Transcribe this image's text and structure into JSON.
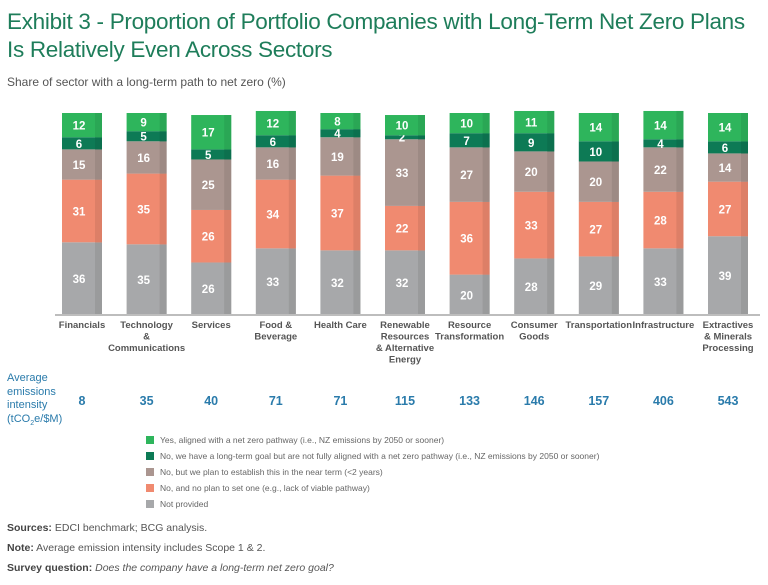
{
  "header": {
    "title": "Exhibit 3 - Proportion of Portfolio Companies with Long-Term Net Zero Plans Is Relatively Even Across Sectors",
    "subtitle": "Share of sector with a long-term path to net zero (%)"
  },
  "chart_data": {
    "type": "bar",
    "stacked": true,
    "title": "Share of sector with a long-term path to net zero (%)",
    "xlabel": "",
    "ylabel": "",
    "ylim": [
      0,
      100
    ],
    "grid": false,
    "legend_position": "bottom",
    "categories": [
      [
        "Financials"
      ],
      [
        "Technology",
        "&",
        "Communications"
      ],
      [
        "Services"
      ],
      [
        "Food &",
        "Beverage"
      ],
      [
        "Health Care"
      ],
      [
        "Renewable",
        "Resources",
        "& Alternative",
        "Energy"
      ],
      [
        "Resource",
        "Transformation"
      ],
      [
        "Consumer",
        "Goods"
      ],
      [
        "Transportation"
      ],
      [
        "Infrastructure"
      ],
      [
        "Extractives",
        "& Minerals",
        "Processing"
      ]
    ],
    "series": [
      {
        "name": "Not provided",
        "color": "#a7a8aa",
        "values": [
          36,
          35,
          26,
          33,
          32,
          32,
          20,
          28,
          29,
          33,
          39
        ]
      },
      {
        "name": "No, and no plan to set one (e.g., lack of viable pathway)",
        "color": "#f08a70",
        "values": [
          31,
          35,
          26,
          34,
          37,
          22,
          36,
          33,
          27,
          28,
          27
        ]
      },
      {
        "name": "No, but we plan to establish this in the near term (<2 years)",
        "color": "#ab9690",
        "values": [
          15,
          16,
          25,
          16,
          19,
          33,
          27,
          20,
          20,
          22,
          14
        ]
      },
      {
        "name": "No, we have a long-term goal but are not fully aligned with a net zero pathway (i.e., NZ emissions by 2050 or sooner)",
        "color": "#0d7a55",
        "values": [
          6,
          5,
          5,
          6,
          4,
          2,
          7,
          9,
          10,
          4,
          6
        ]
      },
      {
        "name": "Yes, aligned with a net zero pathway (i.e., NZ emissions by 2050 or sooner)",
        "color": "#2eb55c",
        "values": [
          12,
          9,
          17,
          12,
          8,
          10,
          10,
          11,
          14,
          14,
          14
        ]
      }
    ],
    "emissions_intensity": {
      "label": [
        "Average",
        "emissions",
        "intensity"
      ],
      "unit_pre": "(tCO",
      "unit_sub": "2",
      "unit_post": "e/$M)",
      "values": [
        8,
        35,
        40,
        71,
        71,
        115,
        133,
        146,
        157,
        406,
        543
      ]
    }
  },
  "legend": [
    {
      "label": "Yes, aligned with a net zero pathway (i.e., NZ emissions by 2050 or sooner)",
      "color": "#2eb55c"
    },
    {
      "label": "No, we have a long-term goal but are not fully aligned with a net zero pathway (i.e., NZ emissions by 2050 or sooner)",
      "color": "#0d7a55"
    },
    {
      "label": "No, but we plan to establish this in the near term (<2 years)",
      "color": "#ab9690"
    },
    {
      "label": "No, and no plan to set one (e.g., lack of viable pathway)",
      "color": "#f08a70"
    },
    {
      "label": "Not provided",
      "color": "#a7a8aa"
    }
  ],
  "notes": {
    "sources_label": "Sources:",
    "sources_text": " EDCI benchmark; BCG analysis.",
    "note_label": "Note:",
    "note_text": " Average emission intensity includes Scope 1 & 2.",
    "survey_label": "Survey question:",
    "survey_text": "Does the company have a long-term net zero goal?"
  }
}
